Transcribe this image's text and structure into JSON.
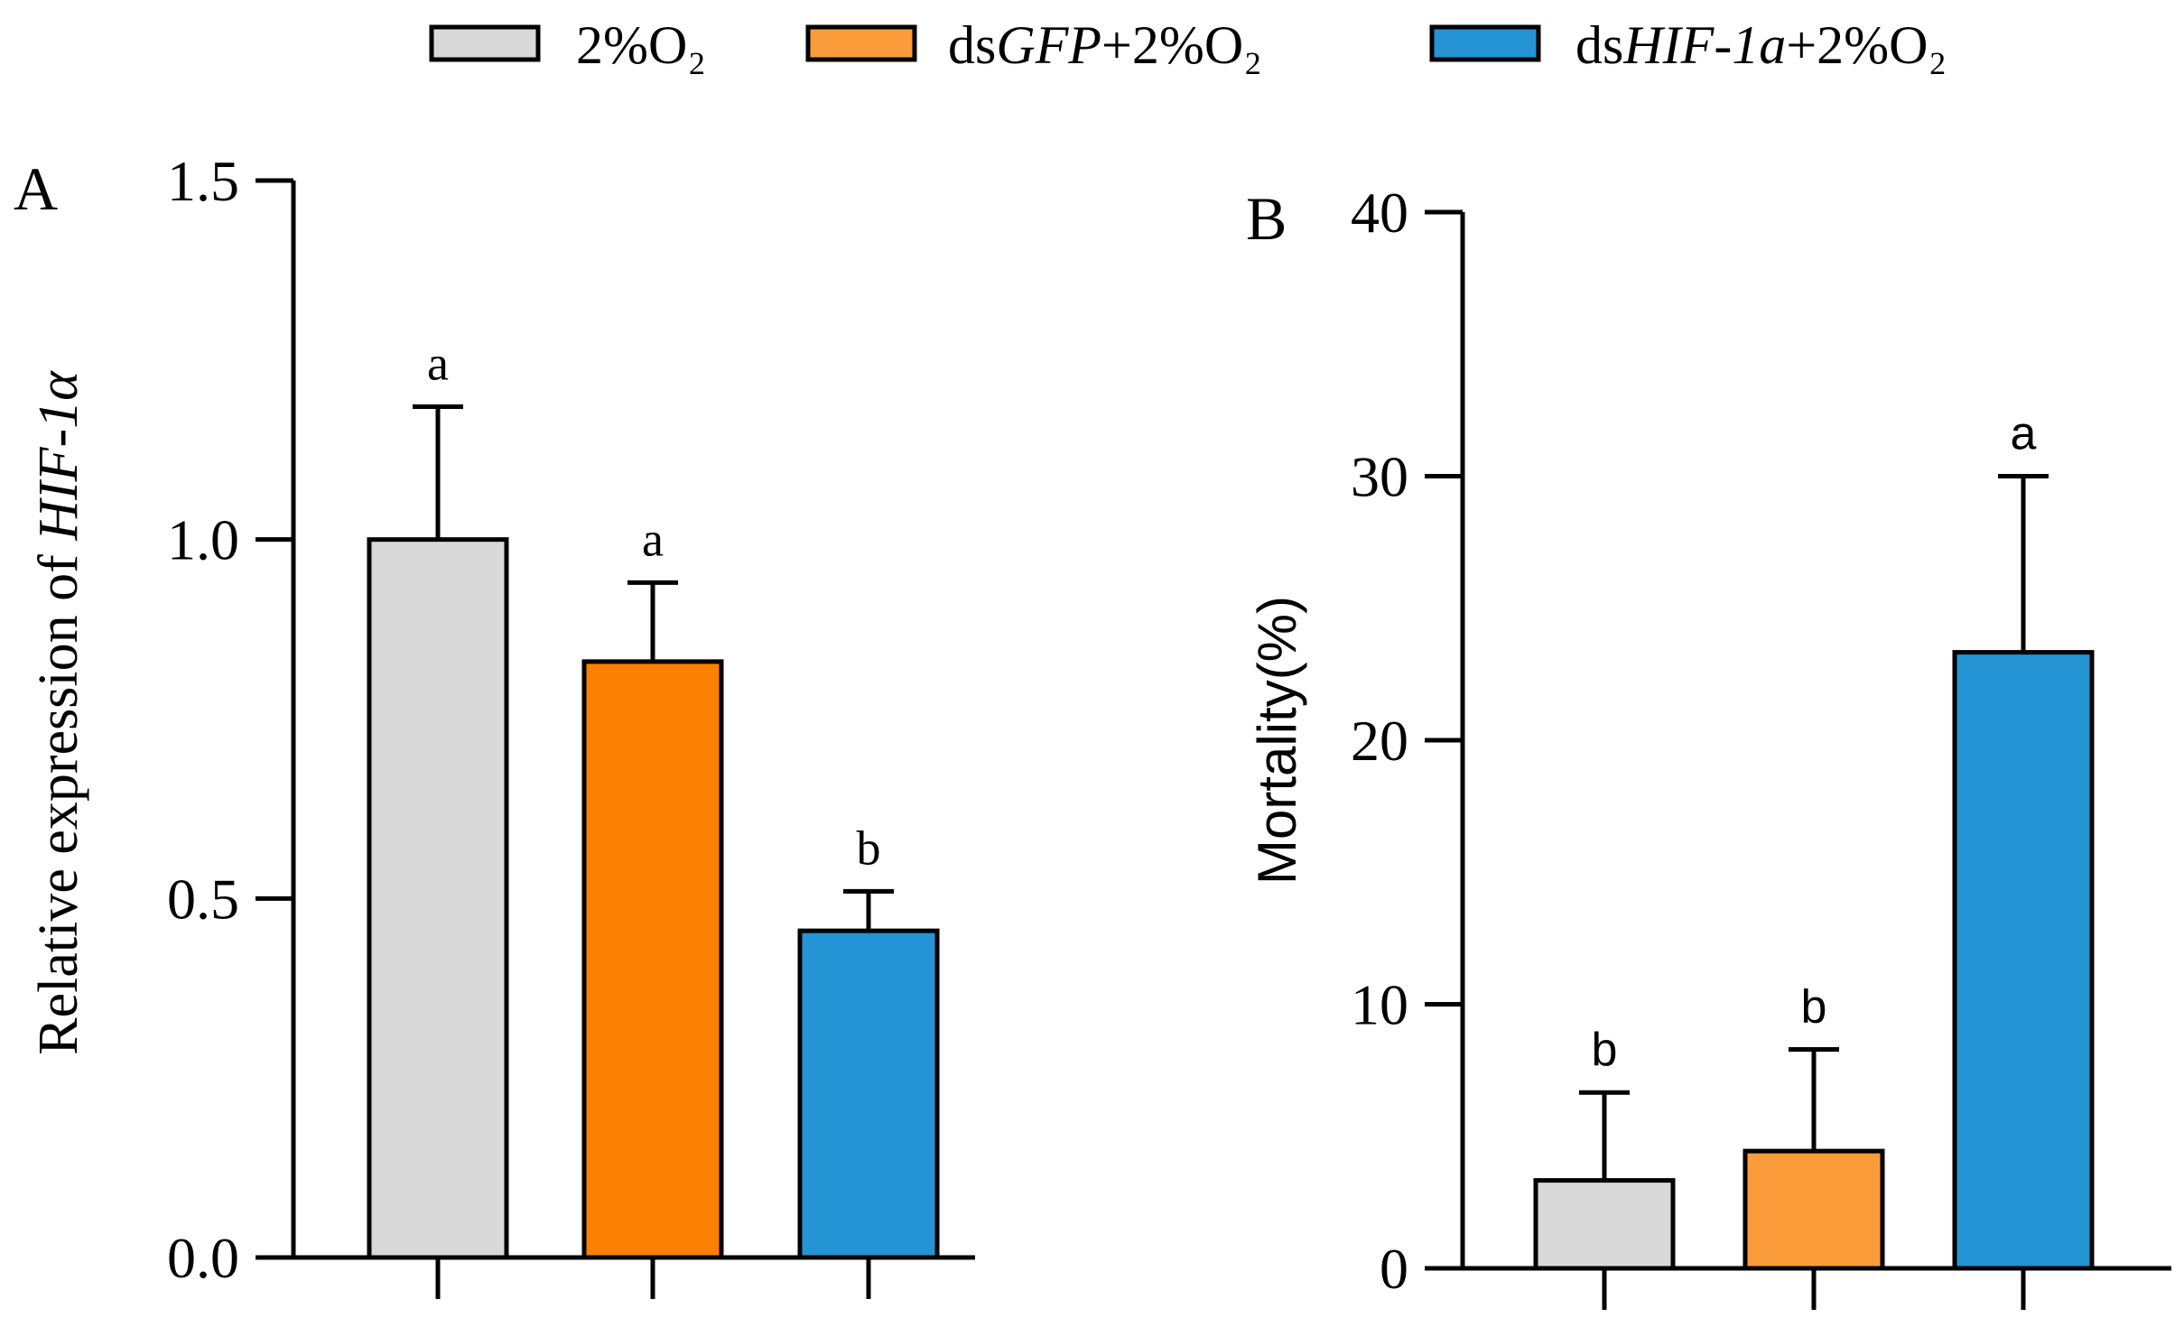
{
  "legend": {
    "items": [
      {
        "prefix": "",
        "italic": "",
        "suffix": "2%O₂",
        "color": "#d9d9d9"
      },
      {
        "prefix": "ds",
        "italic": "GFP",
        "suffix": "+2%O₂",
        "color": "#fb9c3a"
      },
      {
        "prefix": "ds",
        "italic": "HIF-1a",
        "suffix": "+2%O₂",
        "color": "#2494d4"
      }
    ]
  },
  "chart_data": [
    {
      "type": "bar",
      "panel_label": "A",
      "ylabel_prefix": "Relative expression of ",
      "ylabel_italic": "HIF-1α",
      "categories": [
        "2%O₂",
        "dsGFP+2%O₂",
        "dsHIF-1a+2%O₂"
      ],
      "values": [
        1.0,
        0.83,
        0.455
      ],
      "errors": [
        0.185,
        0.11,
        0.055
      ],
      "letters": [
        "a",
        "a",
        "b"
      ],
      "colors": [
        "#d9d9d9",
        "#fb7f00",
        "#2494d4"
      ],
      "ylim": [
        0,
        1.5
      ],
      "yticks": [
        0.0,
        0.5,
        1.0,
        1.5
      ],
      "yticklabels": [
        "0.0",
        "0.5",
        "1.0",
        "1.5"
      ]
    },
    {
      "type": "bar",
      "panel_label": "B",
      "ylabel_prefix": "Mortality(%)",
      "ylabel_italic": "",
      "categories": [
        "2%O₂",
        "dsGFP+2%O₂",
        "dsHIF-1a+2%O₂"
      ],
      "values": [
        3.33,
        4.44,
        23.33
      ],
      "errors": [
        3.33,
        3.85,
        6.67
      ],
      "letters": [
        "b",
        "b",
        "a"
      ],
      "colors": [
        "#d9d9d9",
        "#fb9c3a",
        "#2494d4"
      ],
      "ylim": [
        0,
        40
      ],
      "yticks": [
        0,
        10,
        20,
        30,
        40
      ],
      "yticklabels": [
        "0",
        "10",
        "20",
        "30",
        "40"
      ]
    }
  ]
}
